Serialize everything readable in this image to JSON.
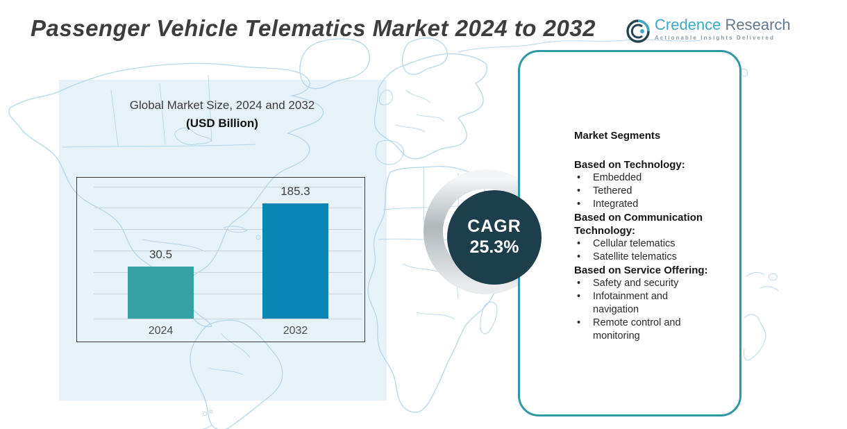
{
  "title": "Passenger Vehicle Telematics Market 2024 to 2032",
  "logo": {
    "brand_primary": "Credence",
    "brand_secondary": " Research",
    "tagline": "Actionable Insights Delivered"
  },
  "chart": {
    "title_line1": "Global Market Size, 2024 and 2032",
    "title_line2": "(USD Billion)"
  },
  "chart_data": {
    "type": "bar",
    "title": "Global Market Size, 2024 and 2032 (USD Billion)",
    "categories": [
      "2024",
      "2032"
    ],
    "values": [
      30.5,
      185.3
    ],
    "value_labels": [
      "30.5",
      "185.3"
    ],
    "unit": "USD Billion",
    "bar_colors": [
      "#35a1a1",
      "#0a84b5"
    ],
    "bar_height_ratio": [
      0.452,
      1.0
    ],
    "grid": true,
    "legend": false,
    "xlabel": "",
    "ylabel": ""
  },
  "cagr": {
    "label": "CAGR",
    "value": "25.3%"
  },
  "segments_panel": {
    "heading": "Market Segments",
    "sections": [
      {
        "title": "Based on Technology:",
        "items": [
          "Embedded",
          "Tethered",
          "Integrated"
        ]
      },
      {
        "title": "Based on Communication Technology:",
        "items": [
          "Cellular telematics",
          "Satellite telematics"
        ]
      },
      {
        "title": "Based on Service Offering:",
        "items": [
          "Safety and security",
          "Infotainment and navigation",
          "Remote control and monitoring"
        ]
      }
    ]
  },
  "colors": {
    "backdrop": "#e7f1f8",
    "map_stroke": "#b5d7e8",
    "bar_2024": "#35a1a1",
    "bar_2032": "#0a84b5",
    "cagr_circle": "#1d3f4b",
    "panel_border": "#2f98a2",
    "brand_teal": "#3aa9c6",
    "brand_gray": "#64788a"
  }
}
